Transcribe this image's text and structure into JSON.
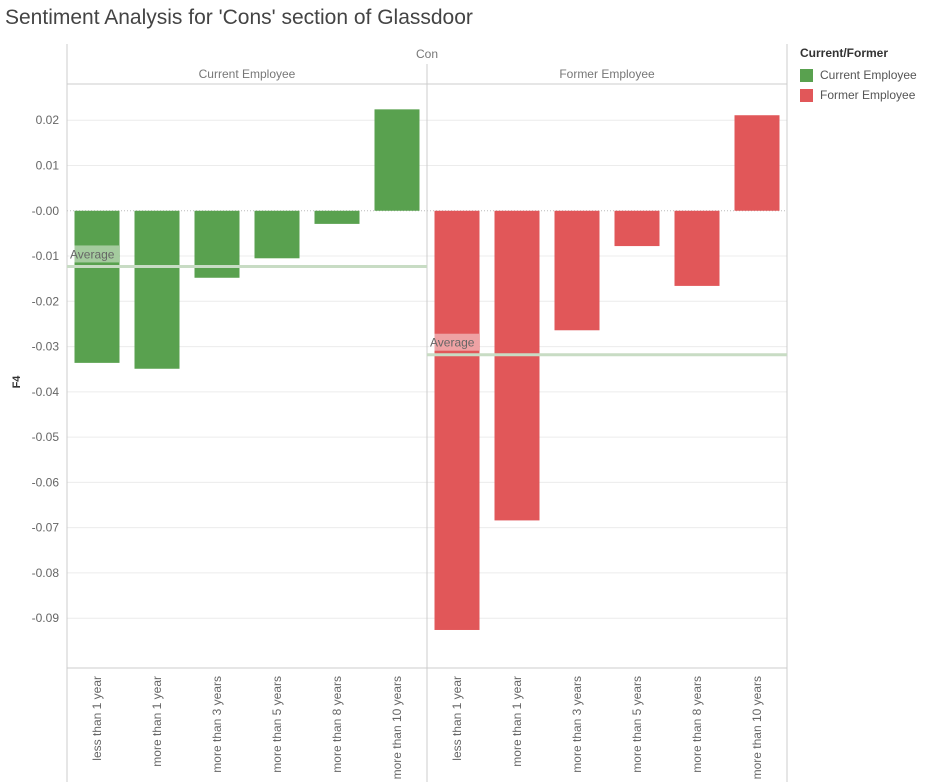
{
  "chart_data": {
    "type": "bar",
    "title": "Sentiment Analysis for 'Cons' section of Glassdoor",
    "column_header": "Con",
    "ylabel": "F4",
    "ylim": [
      -0.101,
      0.028
    ],
    "yticks": [
      0.02,
      0.01,
      0.0,
      -0.01,
      -0.02,
      -0.03,
      -0.04,
      -0.05,
      -0.06,
      -0.07,
      -0.08,
      -0.09
    ],
    "ytick_labels": [
      "0.02",
      "0.01",
      "-0.00",
      "-0.01",
      "-0.02",
      "-0.03",
      "-0.04",
      "-0.05",
      "-0.06",
      "-0.07",
      "-0.08",
      "-0.09"
    ],
    "average_label": "Average",
    "legend_title": "Current/Former",
    "legend_position": "top-right",
    "panels": [
      {
        "name": "Current Employee",
        "color": "#59a14f",
        "average": -0.0123,
        "categories": [
          "less than 1 year",
          "more than 1 year",
          "more than 3 years",
          "more than 5 years",
          "more than 8 years",
          "more than 10 years"
        ],
        "values": [
          -0.0336,
          -0.0349,
          -0.0148,
          -0.0105,
          -0.0029,
          0.0224
        ]
      },
      {
        "name": "Former Employee",
        "color": "#e15759",
        "average": -0.0318,
        "categories": [
          "less than 1 year",
          "more than 1 year",
          "more than 3 years",
          "more than 5 years",
          "more than 8 years",
          "more than 10 years"
        ],
        "values": [
          -0.0926,
          -0.0684,
          -0.0264,
          -0.0078,
          -0.0166,
          0.0211
        ]
      }
    ]
  }
}
